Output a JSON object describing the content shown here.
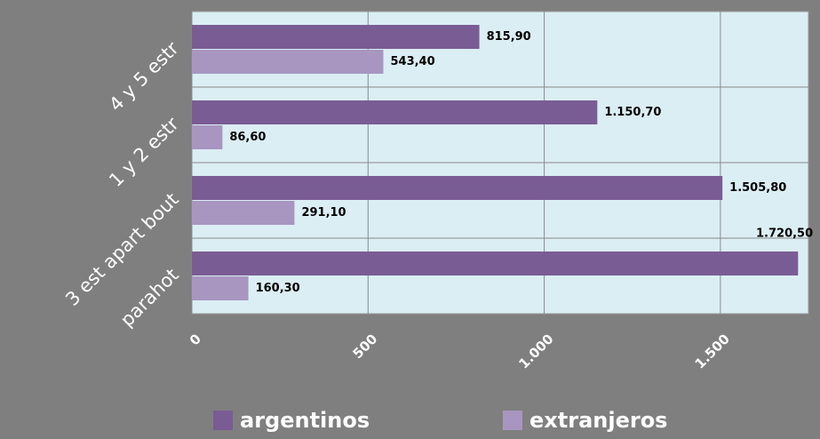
{
  "chart_data": {
    "type": "hbar",
    "categories": [
      "4 y 5 estr",
      "1 y 2 estr",
      "3 est apart bout",
      "parahot"
    ],
    "series": [
      {
        "name": "argentinos",
        "color": "#7a5c94",
        "values": [
          815.9,
          1150.7,
          1505.8,
          1720.5
        ],
        "value_labels": [
          "815,90",
          "1.150,70",
          "1.505,80",
          "1.720,50"
        ]
      },
      {
        "name": "extranjeros",
        "color": "#a896c0",
        "values": [
          543.4,
          86.6,
          291.1,
          160.3
        ],
        "value_labels": [
          "543,40",
          "86,60",
          "291,10",
          "160,30"
        ]
      }
    ],
    "xlim": [
      0,
      1750
    ],
    "xticks": [
      0,
      500,
      {
        "value": 1000,
        "label": "1.000"
      },
      {
        "value": 1500,
        "label": "1.500"
      }
    ],
    "grid": true,
    "legend": "bottom"
  }
}
